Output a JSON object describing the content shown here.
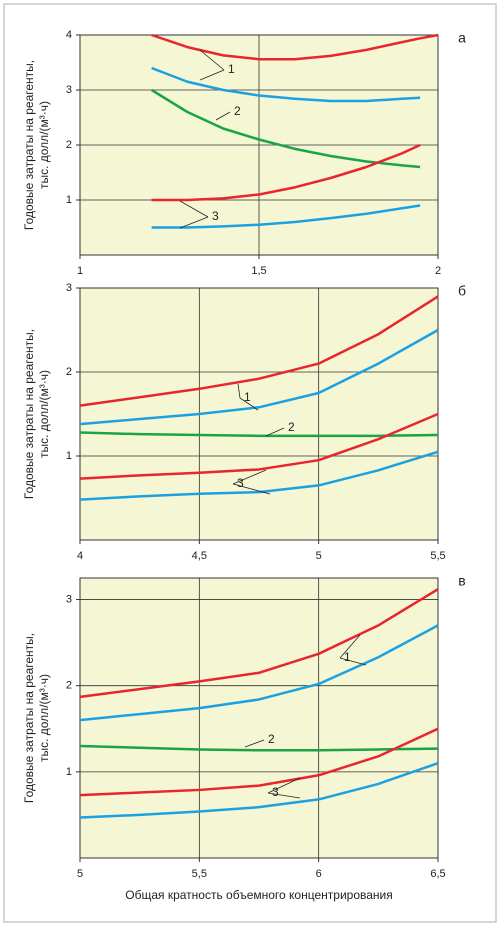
{
  "chart_data": [
    {
      "type": "line",
      "panel_label": "а",
      "ylabel": [
        "Годовые затраты на реагенты,",
        "тыс. долл/(м³·ч)"
      ],
      "x": [
        1.2,
        1.3,
        1.4,
        1.5,
        1.6,
        1.7,
        1.8,
        1.9,
        1.95,
        2.0
      ],
      "series": [
        {
          "name": "1",
          "color": "#e8262d",
          "values": [
            4.0,
            3.78,
            3.63,
            3.56,
            3.56,
            3.62,
            3.73,
            3.87,
            3.94,
            4.0
          ]
        },
        {
          "color": "#1ba1e2",
          "values": [
            3.4,
            3.15,
            3.0,
            2.9,
            2.84,
            2.8,
            2.8,
            2.84,
            2.86,
            null
          ]
        },
        {
          "name": "2",
          "color": "#1aa448",
          "values": [
            3.0,
            2.6,
            2.3,
            2.1,
            1.93,
            1.8,
            1.7,
            1.63,
            1.6,
            null
          ]
        },
        {
          "name": "3",
          "color": "#e8262d",
          "values": [
            1.0,
            1.0,
            1.03,
            1.1,
            1.23,
            1.4,
            1.6,
            1.85,
            2.0,
            null
          ]
        },
        {
          "color": "#1ba1e2",
          "values": [
            0.5,
            0.5,
            0.52,
            0.55,
            0.6,
            0.67,
            0.75,
            0.85,
            0.9,
            null
          ]
        }
      ],
      "xlim": [
        1,
        2
      ],
      "xticks": [
        1,
        {
          "value": 1.5,
          "label": "1,5"
        },
        2
      ],
      "ylim": [
        0,
        4
      ],
      "yticks": [
        1,
        2,
        3,
        4
      ],
      "grid": true
    },
    {
      "type": "line",
      "panel_label": "б",
      "ylabel": [
        "Годовые затраты на реагенты,",
        "тыс. долл/(м³·ч)"
      ],
      "x": [
        4,
        4.25,
        4.5,
        4.75,
        5,
        5.25,
        5.5
      ],
      "series": [
        {
          "name": "1",
          "color": "#e8262d",
          "values": [
            1.6,
            1.7,
            1.8,
            1.92,
            2.1,
            2.45,
            2.9
          ]
        },
        {
          "color": "#1ba1e2",
          "values": [
            1.38,
            1.44,
            1.5,
            1.58,
            1.75,
            2.1,
            2.5
          ]
        },
        {
          "name": "2",
          "color": "#1aa448",
          "values": [
            1.28,
            1.26,
            1.25,
            1.24,
            1.24,
            1.24,
            1.25
          ]
        },
        {
          "name": "3",
          "color": "#e8262d",
          "values": [
            0.73,
            0.77,
            0.8,
            0.84,
            0.95,
            1.2,
            1.5
          ]
        },
        {
          "color": "#1ba1e2",
          "values": [
            0.48,
            0.52,
            0.55,
            0.57,
            0.65,
            0.83,
            1.05
          ]
        }
      ],
      "xlim": [
        4,
        5.5
      ],
      "xticks": [
        4,
        {
          "value": 4.5,
          "label": "4,5"
        },
        5,
        {
          "value": 5.5,
          "label": "5,5"
        }
      ],
      "ylim": [
        0,
        3
      ],
      "yticks": [
        1,
        2,
        3
      ],
      "grid": true
    },
    {
      "type": "line",
      "panel_label": "в",
      "ylabel": [
        "Годовые затраты на реагенты,",
        "тыс. долл/(м³·ч)"
      ],
      "xlabel": "Общая кратность объемного концентрирования",
      "x": [
        5,
        5.25,
        5.5,
        5.75,
        6,
        6.25,
        6.5
      ],
      "series": [
        {
          "name": "1",
          "color": "#e8262d",
          "values": [
            1.87,
            1.96,
            2.05,
            2.15,
            2.37,
            2.7,
            3.12
          ]
        },
        {
          "color": "#1ba1e2",
          "values": [
            1.6,
            1.67,
            1.74,
            1.84,
            2.02,
            2.33,
            2.7
          ]
        },
        {
          "name": "2",
          "color": "#1aa448",
          "values": [
            1.3,
            1.28,
            1.26,
            1.25,
            1.25,
            1.26,
            1.27
          ]
        },
        {
          "name": "3",
          "color": "#e8262d",
          "values": [
            0.73,
            0.76,
            0.79,
            0.84,
            0.96,
            1.18,
            1.5
          ]
        },
        {
          "color": "#1ba1e2",
          "values": [
            0.47,
            0.5,
            0.54,
            0.59,
            0.68,
            0.86,
            1.1
          ]
        }
      ],
      "xlim": [
        5,
        6.5
      ],
      "xticks": [
        5,
        {
          "value": 5.5,
          "label": "5,5"
        },
        6,
        {
          "value": 6.5,
          "label": "6,5"
        }
      ],
      "ylim": [
        0,
        3.25
      ],
      "yticks": [
        1,
        2,
        3
      ],
      "grid": true
    }
  ]
}
